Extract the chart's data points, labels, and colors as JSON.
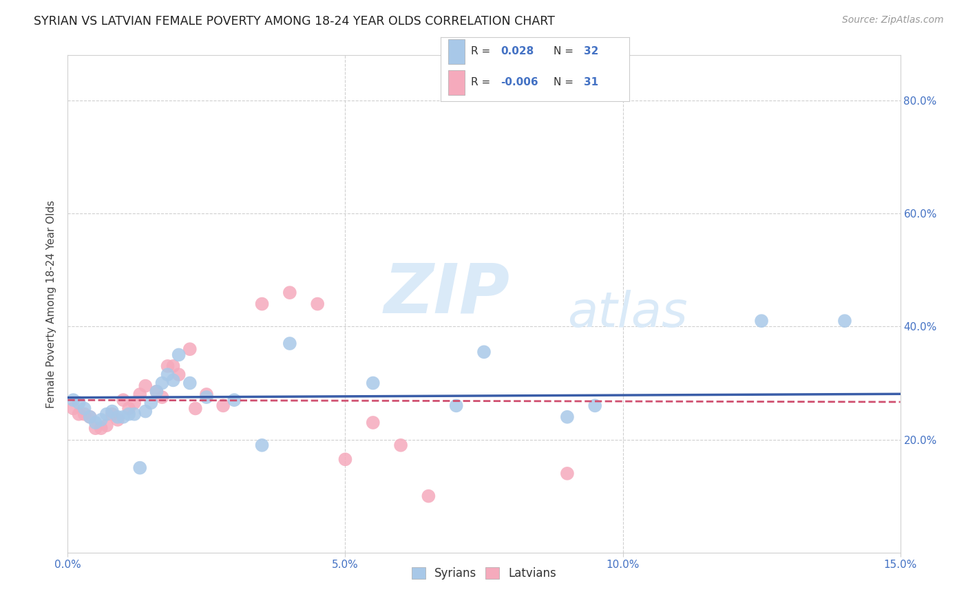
{
  "title": "SYRIAN VS LATVIAN FEMALE POVERTY AMONG 18-24 YEAR OLDS CORRELATION CHART",
  "source": "Source: ZipAtlas.com",
  "ylabel": "Female Poverty Among 18-24 Year Olds",
  "xlim": [
    0.0,
    0.15
  ],
  "ylim": [
    0.0,
    0.88
  ],
  "xticks": [
    0.0,
    0.05,
    0.1,
    0.15
  ],
  "yticks": [
    0.2,
    0.4,
    0.6,
    0.8
  ],
  "syrians_R": 0.028,
  "syrians_N": 32,
  "latvians_R": -0.006,
  "latvians_N": 31,
  "syrians_color": "#a8c8e8",
  "latvians_color": "#f5aabc",
  "syrians_line_color": "#3a5da8",
  "latvians_line_color": "#d05070",
  "watermark_color": "#daeaf8",
  "grid_color": "#d0d0d0",
  "tick_color": "#4472c4",
  "title_color": "#222222",
  "source_color": "#999999",
  "syrians_x": [
    0.001,
    0.002,
    0.003,
    0.004,
    0.005,
    0.006,
    0.007,
    0.008,
    0.009,
    0.01,
    0.011,
    0.012,
    0.013,
    0.014,
    0.015,
    0.016,
    0.017,
    0.018,
    0.019,
    0.02,
    0.022,
    0.025,
    0.03,
    0.035,
    0.04,
    0.055,
    0.07,
    0.075,
    0.09,
    0.095,
    0.125,
    0.14
  ],
  "syrians_y": [
    0.27,
    0.265,
    0.255,
    0.24,
    0.23,
    0.235,
    0.245,
    0.25,
    0.24,
    0.24,
    0.245,
    0.245,
    0.15,
    0.25,
    0.265,
    0.285,
    0.3,
    0.315,
    0.305,
    0.35,
    0.3,
    0.275,
    0.27,
    0.19,
    0.37,
    0.3,
    0.26,
    0.355,
    0.24,
    0.26,
    0.41,
    0.41
  ],
  "latvians_x": [
    0.001,
    0.002,
    0.003,
    0.004,
    0.005,
    0.006,
    0.007,
    0.008,
    0.009,
    0.01,
    0.011,
    0.012,
    0.013,
    0.014,
    0.016,
    0.017,
    0.018,
    0.019,
    0.02,
    0.022,
    0.023,
    0.025,
    0.028,
    0.035,
    0.04,
    0.045,
    0.05,
    0.055,
    0.06,
    0.065,
    0.09
  ],
  "latvians_y": [
    0.255,
    0.245,
    0.245,
    0.24,
    0.22,
    0.22,
    0.225,
    0.245,
    0.235,
    0.27,
    0.255,
    0.265,
    0.28,
    0.295,
    0.285,
    0.275,
    0.33,
    0.33,
    0.315,
    0.36,
    0.255,
    0.28,
    0.26,
    0.44,
    0.46,
    0.44,
    0.165,
    0.23,
    0.19,
    0.1,
    0.14
  ],
  "sy_line_x0": 0.0,
  "sy_line_y0": 0.265,
  "sy_line_x1": 0.15,
  "sy_line_y1": 0.295,
  "la_line_x0": 0.0,
  "la_line_y0": 0.275,
  "la_line_x1": 0.15,
  "la_line_y1": 0.255
}
